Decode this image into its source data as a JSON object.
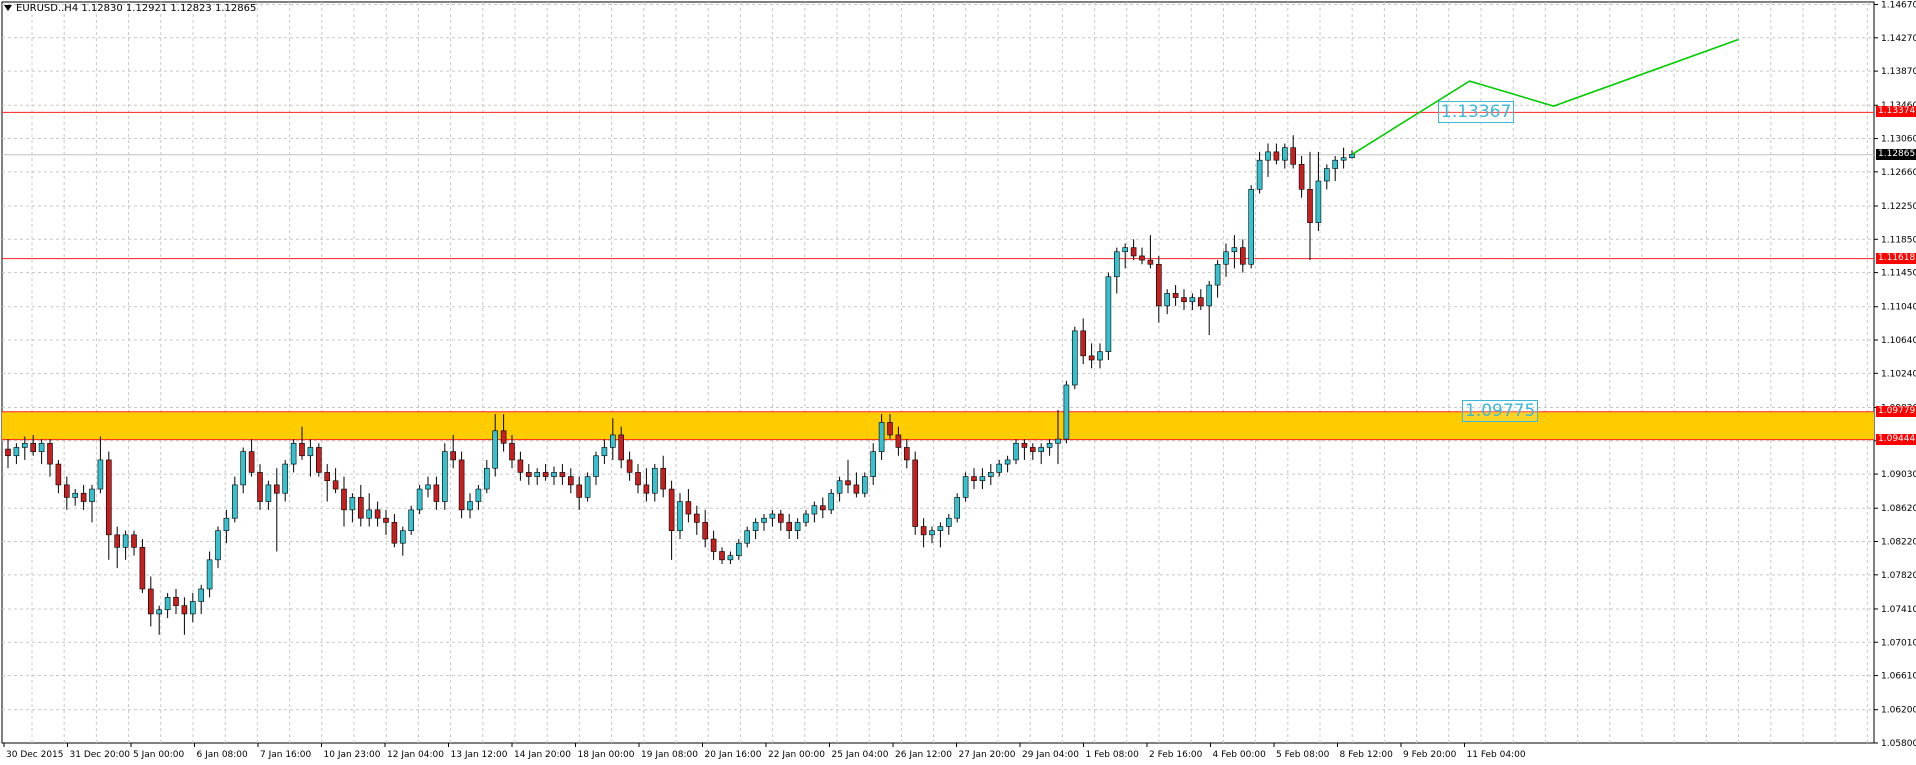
{
  "window": {
    "symbol_text": "EURUSD..H4 1.12830 1.12921 1.12823 1.12865"
  },
  "colors": {
    "grid": "#c8c8c8",
    "bull_body": "#36c1cd",
    "bear_body": "#c42020",
    "wick": "#000000",
    "resistance": "#ff2020",
    "zone_fill": "#ffcc00",
    "forecast": "#00cc00",
    "annotation": "#3bb8d8"
  },
  "chart_data": {
    "type": "candlestick",
    "symbol": "EURUSD..H4",
    "ylim": [
      1.058,
      1.147
    ],
    "y_ticks": [
      "1.14670",
      "1.14270",
      "1.13870",
      "1.13460",
      "1.13060",
      "1.12660",
      "1.12250",
      "1.11850",
      "1.11450",
      "1.11040",
      "1.10640",
      "1.10240",
      "1.09830",
      "1.09430",
      "1.09030",
      "1.08620",
      "1.08220",
      "1.07820",
      "1.07410",
      "1.07010",
      "1.06610",
      "1.06200",
      "1.05800"
    ],
    "x_labels": [
      "30 Dec 2015",
      "31 Dec 20:00",
      "5 Jan 00:00",
      "6 Jan 08:00",
      "7 Jan 16:00",
      "10 Jan 23:00",
      "12 Jan 04:00",
      "13 Jan 12:00",
      "14 Jan 20:00",
      "18 Jan 00:00",
      "19 Jan 08:00",
      "20 Jan 16:00",
      "22 Jan 00:00",
      "25 Jan 04:00",
      "26 Jan 12:00",
      "27 Jan 20:00",
      "29 Jan 04:00",
      "1 Feb 08:00",
      "2 Feb 16:00",
      "4 Feb 00:00",
      "5 Feb 08:00",
      "8 Feb 12:00",
      "9 Feb 20:00",
      "11 Feb 04:00"
    ],
    "ohlc": [
      [
        1.0933,
        1.0945,
        1.091,
        1.0925
      ],
      [
        1.0925,
        1.094,
        1.0915,
        1.0935
      ],
      [
        1.0935,
        1.0948,
        1.092,
        1.094
      ],
      [
        1.094,
        1.095,
        1.0925,
        1.093
      ],
      [
        1.093,
        1.0945,
        1.0915,
        1.094
      ],
      [
        1.094,
        1.0945,
        1.09,
        1.0915
      ],
      [
        1.0915,
        1.092,
        1.088,
        1.089
      ],
      [
        1.089,
        1.09,
        1.086,
        1.0875
      ],
      [
        1.0875,
        1.0885,
        1.0865,
        1.088
      ],
      [
        1.088,
        1.089,
        1.086,
        1.087
      ],
      [
        1.087,
        1.089,
        1.0845,
        1.0885
      ],
      [
        1.0885,
        1.0948,
        1.088,
        1.092
      ],
      [
        1.092,
        1.093,
        1.08,
        1.083
      ],
      [
        1.083,
        1.084,
        1.079,
        1.0815
      ],
      [
        1.0815,
        1.0835,
        1.08,
        1.083
      ],
      [
        1.083,
        1.0835,
        1.0805,
        1.0815
      ],
      [
        1.0815,
        1.0825,
        1.076,
        1.0765
      ],
      [
        1.0765,
        1.078,
        1.072,
        1.0735
      ],
      [
        1.0735,
        1.0745,
        1.071,
        1.074
      ],
      [
        1.074,
        1.076,
        1.073,
        1.0755
      ],
      [
        1.0755,
        1.0765,
        1.0735,
        1.0745
      ],
      [
        1.0745,
        1.0755,
        1.071,
        1.0735
      ],
      [
        1.0735,
        1.076,
        1.0725,
        1.075
      ],
      [
        1.075,
        1.077,
        1.0735,
        1.0765
      ],
      [
        1.0765,
        1.081,
        1.0755,
        1.08
      ],
      [
        1.08,
        1.084,
        1.079,
        1.0835
      ],
      [
        1.0835,
        1.086,
        1.082,
        1.085
      ],
      [
        1.085,
        1.09,
        1.0845,
        1.089
      ],
      [
        1.089,
        1.0935,
        1.088,
        1.093
      ],
      [
        1.093,
        1.0945,
        1.09,
        1.0905
      ],
      [
        1.0905,
        1.0915,
        1.086,
        1.087
      ],
      [
        1.087,
        1.0895,
        1.086,
        1.089
      ],
      [
        1.089,
        1.091,
        1.081,
        1.088
      ],
      [
        1.088,
        1.092,
        1.087,
        1.0915
      ],
      [
        1.0915,
        1.0945,
        1.0905,
        1.094
      ],
      [
        1.094,
        1.096,
        1.092,
        1.0925
      ],
      [
        1.0925,
        1.0945,
        1.09,
        1.0935
      ],
      [
        1.0935,
        1.094,
        1.09,
        1.0905
      ],
      [
        1.0905,
        1.0915,
        1.087,
        1.0895
      ],
      [
        1.0895,
        1.091,
        1.088,
        1.0885
      ],
      [
        1.0885,
        1.09,
        1.084,
        1.086
      ],
      [
        1.086,
        1.088,
        1.0845,
        1.0875
      ],
      [
        1.0875,
        1.089,
        1.084,
        1.085
      ],
      [
        1.085,
        1.088,
        1.084,
        1.086
      ],
      [
        1.086,
        1.087,
        1.084,
        1.085
      ],
      [
        1.085,
        1.086,
        1.083,
        1.0845
      ],
      [
        1.0845,
        1.0855,
        1.0815,
        1.082
      ],
      [
        1.082,
        1.084,
        1.0805,
        1.0835
      ],
      [
        1.0835,
        1.0865,
        1.083,
        1.086
      ],
      [
        1.086,
        1.089,
        1.0855,
        1.0885
      ],
      [
        1.0885,
        1.09,
        1.0875,
        1.089
      ],
      [
        1.089,
        1.09,
        1.086,
        1.087
      ],
      [
        1.087,
        1.094,
        1.086,
        1.093
      ],
      [
        1.093,
        1.095,
        1.091,
        1.092
      ],
      [
        1.092,
        1.093,
        1.085,
        1.086
      ],
      [
        1.086,
        1.088,
        1.085,
        1.087
      ],
      [
        1.087,
        1.089,
        1.086,
        1.0885
      ],
      [
        1.0885,
        1.092,
        1.088,
        1.091
      ],
      [
        1.091,
        1.0975,
        1.09,
        1.0955
      ],
      [
        1.0955,
        1.0975,
        1.093,
        1.094
      ],
      [
        1.094,
        1.095,
        1.091,
        1.092
      ],
      [
        1.092,
        1.093,
        1.0895,
        1.0905
      ],
      [
        1.0905,
        1.0915,
        1.089,
        1.09
      ],
      [
        1.09,
        1.091,
        1.089,
        1.0905
      ],
      [
        1.0905,
        1.0915,
        1.0895,
        1.09
      ],
      [
        1.09,
        1.0912,
        1.089,
        1.0905
      ],
      [
        1.0905,
        1.0915,
        1.089,
        1.09
      ],
      [
        1.09,
        1.091,
        1.088,
        1.089
      ],
      [
        1.089,
        1.09,
        1.086,
        1.0875
      ],
      [
        1.0875,
        1.0905,
        1.087,
        1.09
      ],
      [
        1.09,
        1.093,
        1.089,
        1.0925
      ],
      [
        1.0925,
        1.0945,
        1.0915,
        1.0935
      ],
      [
        1.0935,
        1.097,
        1.092,
        1.095
      ],
      [
        1.095,
        1.096,
        1.091,
        1.092
      ],
      [
        1.092,
        1.093,
        1.0895,
        1.0905
      ],
      [
        1.0905,
        1.0915,
        1.088,
        1.089
      ],
      [
        1.089,
        1.091,
        1.087,
        1.088
      ],
      [
        1.088,
        1.0915,
        1.087,
        1.091
      ],
      [
        1.091,
        1.0925,
        1.0875,
        1.0885
      ],
      [
        1.0885,
        1.0895,
        1.08,
        1.0835
      ],
      [
        1.0835,
        1.088,
        1.0825,
        1.087
      ],
      [
        1.087,
        1.0885,
        1.0845,
        1.0855
      ],
      [
        1.0855,
        1.0865,
        1.083,
        1.0845
      ],
      [
        1.0845,
        1.086,
        1.0815,
        1.0825
      ],
      [
        1.0825,
        1.0835,
        1.08,
        1.081
      ],
      [
        1.081,
        1.0815,
        1.0795,
        1.08
      ],
      [
        1.08,
        1.081,
        1.0795,
        1.0805
      ],
      [
        1.0805,
        1.0825,
        1.08,
        1.082
      ],
      [
        1.082,
        1.084,
        1.0815,
        1.0835
      ],
      [
        1.0835,
        1.085,
        1.0825,
        1.0845
      ],
      [
        1.0845,
        1.0855,
        1.0835,
        1.085
      ],
      [
        1.085,
        1.086,
        1.084,
        1.0855
      ],
      [
        1.0855,
        1.086,
        1.0835,
        1.0845
      ],
      [
        1.0845,
        1.0855,
        1.0825,
        1.0835
      ],
      [
        1.0835,
        1.085,
        1.0825,
        1.0845
      ],
      [
        1.0845,
        1.086,
        1.084,
        1.0855
      ],
      [
        1.0855,
        1.087,
        1.0845,
        1.0865
      ],
      [
        1.0865,
        1.0875,
        1.085,
        1.086
      ],
      [
        1.086,
        1.0885,
        1.0855,
        1.088
      ],
      [
        1.088,
        1.09,
        1.087,
        1.0895
      ],
      [
        1.0895,
        1.092,
        1.088,
        1.089
      ],
      [
        1.089,
        1.0905,
        1.0875,
        1.088
      ],
      [
        1.088,
        1.0905,
        1.0875,
        1.09
      ],
      [
        1.09,
        1.094,
        1.089,
        1.093
      ],
      [
        1.093,
        1.0975,
        1.092,
        1.0965
      ],
      [
        1.0965,
        1.0975,
        1.0945,
        1.095
      ],
      [
        1.095,
        1.096,
        1.0925,
        1.0935
      ],
      [
        1.0935,
        1.0945,
        1.091,
        1.092
      ],
      [
        1.092,
        1.093,
        1.083,
        1.084
      ],
      [
        1.084,
        1.085,
        1.0815,
        1.083
      ],
      [
        1.083,
        1.084,
        1.082,
        1.0835
      ],
      [
        1.0835,
        1.0845,
        1.0815,
        1.084
      ],
      [
        1.084,
        1.0855,
        1.083,
        1.085
      ],
      [
        1.085,
        1.088,
        1.0845,
        1.0875
      ],
      [
        1.0875,
        1.0905,
        1.087,
        1.09
      ],
      [
        1.09,
        1.091,
        1.0885,
        1.0895
      ],
      [
        1.0895,
        1.091,
        1.0885,
        1.09
      ],
      [
        1.09,
        1.0915,
        1.089,
        1.0905
      ],
      [
        1.0905,
        1.092,
        1.09,
        1.0915
      ],
      [
        1.0915,
        1.0925,
        1.0905,
        1.092
      ],
      [
        1.092,
        1.0945,
        1.0915,
        1.094
      ],
      [
        1.094,
        1.0945,
        1.092,
        1.0935
      ],
      [
        1.0935,
        1.094,
        1.092,
        1.093
      ],
      [
        1.093,
        1.094,
        1.0915,
        1.0935
      ],
      [
        1.0935,
        1.0945,
        1.0925,
        1.094
      ],
      [
        1.094,
        1.098,
        1.0915,
        1.0945
      ],
      [
        1.0945,
        1.1015,
        1.094,
        1.101
      ],
      [
        1.101,
        1.108,
        1.1005,
        1.1075
      ],
      [
        1.1075,
        1.109,
        1.1035,
        1.1045
      ],
      [
        1.1045,
        1.106,
        1.103,
        1.104
      ],
      [
        1.104,
        1.106,
        1.103,
        1.105
      ],
      [
        1.105,
        1.1145,
        1.104,
        1.114
      ],
      [
        1.114,
        1.1175,
        1.112,
        1.117
      ],
      [
        1.117,
        1.118,
        1.115,
        1.1175
      ],
      [
        1.1175,
        1.1185,
        1.116,
        1.1165
      ],
      [
        1.1165,
        1.1175,
        1.1155,
        1.116
      ],
      [
        1.116,
        1.119,
        1.115,
        1.1155
      ],
      [
        1.1155,
        1.1165,
        1.1085,
        1.1105
      ],
      [
        1.1105,
        1.1125,
        1.1095,
        1.112
      ],
      [
        1.112,
        1.113,
        1.1105,
        1.1115
      ],
      [
        1.1115,
        1.1125,
        1.11,
        1.111
      ],
      [
        1.111,
        1.112,
        1.11,
        1.1115
      ],
      [
        1.1115,
        1.1125,
        1.11,
        1.1105
      ],
      [
        1.1105,
        1.1135,
        1.107,
        1.113
      ],
      [
        1.113,
        1.116,
        1.1115,
        1.1155
      ],
      [
        1.1155,
        1.118,
        1.114,
        1.117
      ],
      [
        1.117,
        1.119,
        1.115,
        1.1175
      ],
      [
        1.1175,
        1.1185,
        1.1145,
        1.1155
      ],
      [
        1.1155,
        1.125,
        1.115,
        1.1245
      ],
      [
        1.1245,
        1.129,
        1.124,
        1.128
      ],
      [
        1.128,
        1.13,
        1.126,
        1.129
      ],
      [
        1.129,
        1.13,
        1.1275,
        1.128
      ],
      [
        1.128,
        1.13,
        1.127,
        1.1295
      ],
      [
        1.1295,
        1.131,
        1.127,
        1.1275
      ],
      [
        1.1275,
        1.1285,
        1.1235,
        1.1245
      ],
      [
        1.1245,
        1.129,
        1.116,
        1.1205
      ],
      [
        1.1205,
        1.129,
        1.1195,
        1.1255
      ],
      [
        1.1255,
        1.1275,
        1.1245,
        1.127
      ],
      [
        1.127,
        1.1285,
        1.1255,
        1.128
      ],
      [
        1.128,
        1.1295,
        1.127,
        1.1283
      ],
      [
        1.1283,
        1.1292,
        1.1282,
        1.1287
      ]
    ],
    "levels": {
      "upper_resistance": "1.13374",
      "mid_support": "1.11618",
      "zone_top": "1.09779",
      "zone_bottom": "1.09444",
      "current": "1.12865"
    },
    "level_values": {
      "upper_resistance": 1.13374,
      "mid_support": 1.11618,
      "zone_top": 1.09779,
      "zone_bottom": 1.09444,
      "current": 1.12865
    },
    "annotations": {
      "upper": "1.13367",
      "lower": "1.09775"
    },
    "forecast_path": [
      [
        1.1287,
        0
      ],
      [
        1.1375,
        14
      ],
      [
        1.1345,
        24
      ],
      [
        1.1425,
        46
      ]
    ]
  }
}
